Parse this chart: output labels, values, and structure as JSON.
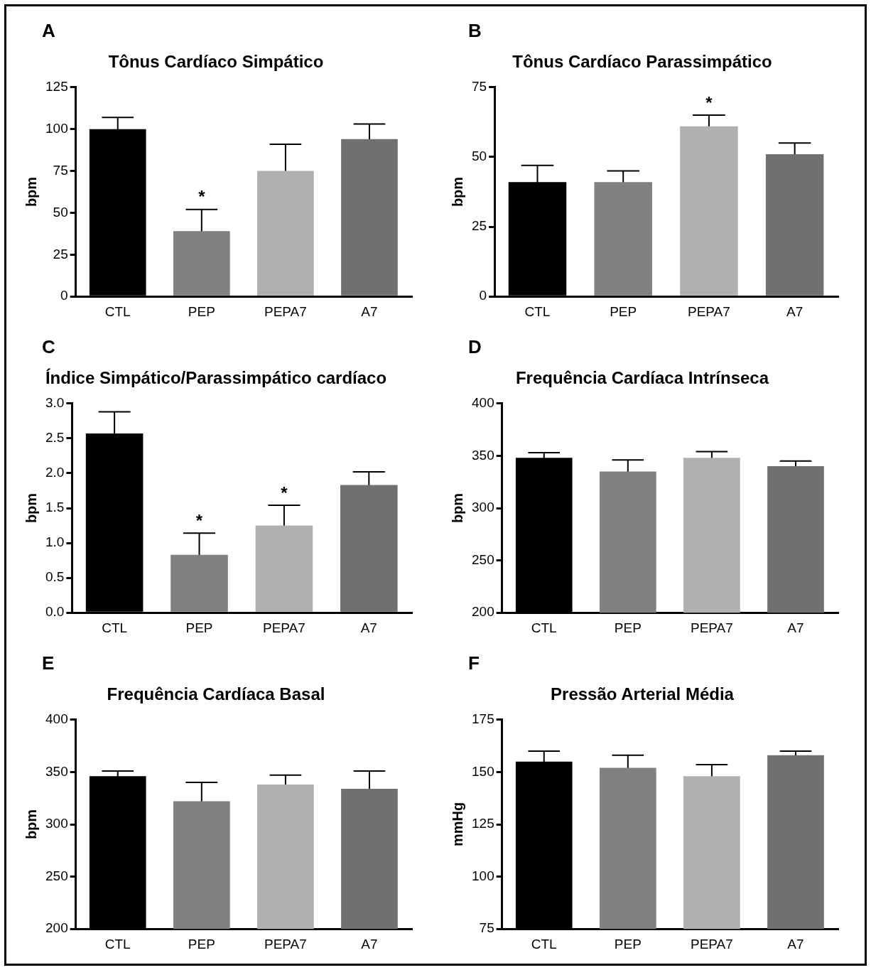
{
  "chart_data": [
    {
      "type": "bar",
      "title": "Tônus Cardíaco Simpático",
      "ylabel": "bpm",
      "categories": [
        "CTL",
        "PEP",
        "PEPA7",
        "A7"
      ],
      "values": [
        100,
        39,
        75,
        94
      ],
      "colors": [
        "#000000",
        "#808080",
        "#b0b0b0",
        "#707070"
      ],
      "errors": [
        7,
        13,
        16,
        9
      ],
      "value_labels": [
        null,
        "*",
        null,
        null
      ],
      "ylim": [
        0,
        125
      ],
      "yticks": [
        0,
        25,
        50,
        75,
        100,
        125
      ],
      "grid": false,
      "legend": false,
      "annotations": [
        "A"
      ]
    },
    {
      "type": "bar",
      "title": "Tônus Cardíaco Parassimpático",
      "ylabel": "bpm",
      "categories": [
        "CTL",
        "PEP",
        "PEPA7",
        "A7"
      ],
      "values": [
        41,
        41,
        61,
        51
      ],
      "colors": [
        "#000000",
        "#808080",
        "#b0b0b0",
        "#707070"
      ],
      "errors": [
        6,
        4,
        4,
        4
      ],
      "value_labels": [
        null,
        null,
        "*",
        null
      ],
      "ylim": [
        0,
        75
      ],
      "yticks": [
        0,
        25,
        50,
        75
      ],
      "grid": false,
      "legend": false,
      "annotations": [
        "B"
      ]
    },
    {
      "type": "bar",
      "title": "Índice Simpático/Parassimpático cardíaco",
      "ylabel": "bpm",
      "categories": [
        "CTL",
        "PEP",
        "PEPA7",
        "A7"
      ],
      "values": [
        2.57,
        0.83,
        1.25,
        1.83
      ],
      "colors": [
        "#000000",
        "#808080",
        "#b0b0b0",
        "#707070"
      ],
      "errors": [
        0.31,
        0.31,
        0.29,
        0.19
      ],
      "value_labels": [
        null,
        "*",
        "*",
        null
      ],
      "ylim": [
        0,
        3
      ],
      "yticks": [
        {
          "value": 0,
          "label": "0.0"
        },
        {
          "value": 0.5,
          "label": "0.5"
        },
        {
          "value": 1,
          "label": "1.0"
        },
        {
          "value": 1.5,
          "label": "1.5"
        },
        {
          "value": 2,
          "label": "2.0"
        },
        {
          "value": 2.5,
          "label": "2.5"
        },
        {
          "value": 3,
          "label": "3.0"
        }
      ],
      "grid": false,
      "legend": false,
      "annotations": [
        "C"
      ]
    },
    {
      "type": "bar",
      "title": "Frequência Cardíaca Intrínseca",
      "ylabel": "bpm",
      "categories": [
        "CTL",
        "PEP",
        "PEPA7",
        "A7"
      ],
      "values": [
        348,
        335,
        348,
        340
      ],
      "colors": [
        "#000000",
        "#808080",
        "#b0b0b0",
        "#707070"
      ],
      "errors": [
        5,
        11,
        6,
        5
      ],
      "ylim": [
        200,
        400
      ],
      "yticks": [
        200,
        250,
        300,
        350,
        400
      ],
      "grid": false,
      "legend": false,
      "annotations": [
        "D"
      ]
    },
    {
      "type": "bar",
      "title": "Frequência Cardíaca Basal",
      "ylabel": "bpm",
      "categories": [
        "CTL",
        "PEP",
        "PEPA7",
        "A7"
      ],
      "values": [
        346,
        322,
        338,
        334
      ],
      "colors": [
        "#000000",
        "#808080",
        "#b0b0b0",
        "#707070"
      ],
      "errors": [
        5,
        18,
        9,
        17
      ],
      "ylim": [
        200,
        400
      ],
      "yticks": [
        200,
        250,
        300,
        350,
        400
      ],
      "grid": false,
      "legend": false,
      "annotations": [
        "E"
      ]
    },
    {
      "type": "bar",
      "title": "Pressão Arterial Média",
      "ylabel": "mmHg",
      "categories": [
        "CTL",
        "PEP",
        "PEPA7",
        "A7"
      ],
      "values": [
        155,
        152,
        148,
        158
      ],
      "colors": [
        "#000000",
        "#808080",
        "#b0b0b0",
        "#707070"
      ],
      "errors": [
        5,
        6,
        5.5,
        2
      ],
      "ylim": [
        75,
        175
      ],
      "yticks": [
        75,
        100,
        125,
        150,
        175
      ],
      "grid": false,
      "legend": false,
      "annotations": [
        "F"
      ]
    }
  ]
}
